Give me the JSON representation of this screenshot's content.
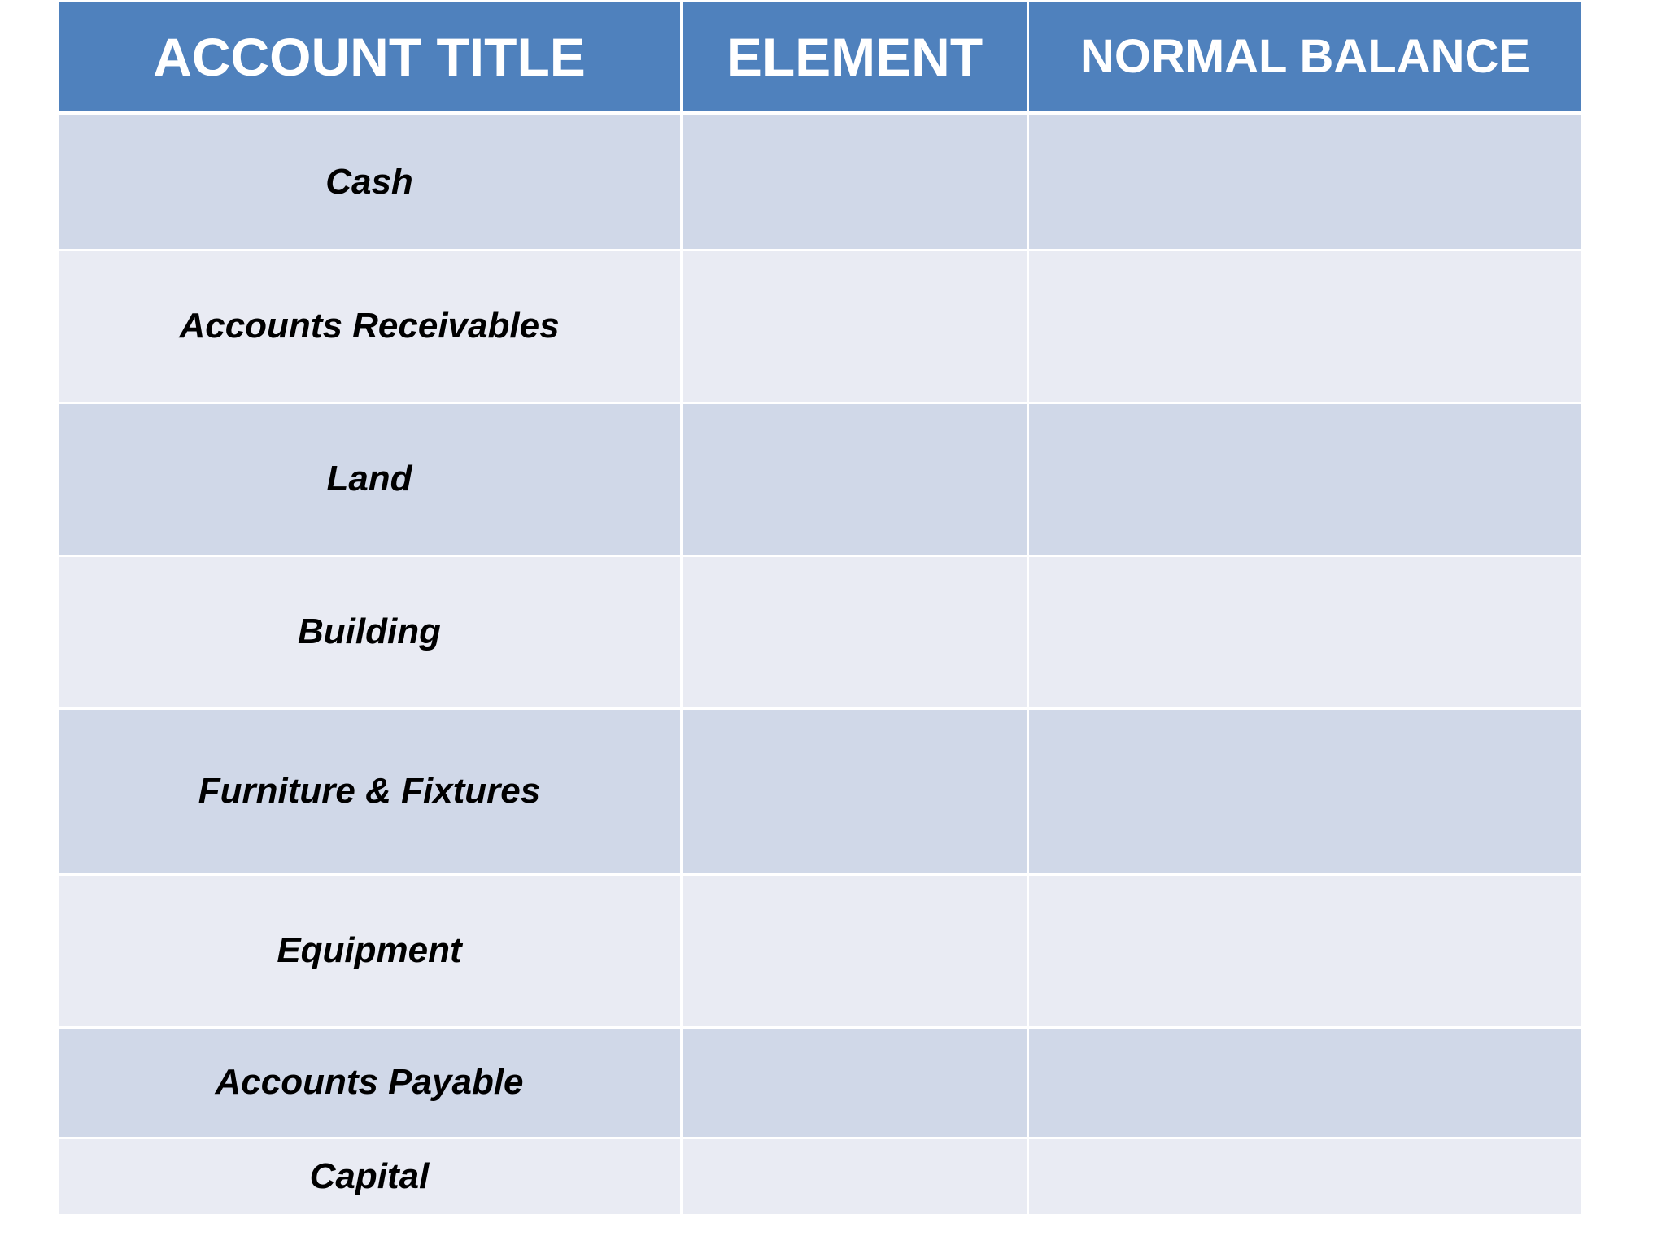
{
  "table": {
    "headers": [
      "ACCOUNT TITLE",
      "ELEMENT",
      "NORMAL BALANCE"
    ],
    "rows": [
      {
        "account": "Cash",
        "element": "",
        "normal_balance": ""
      },
      {
        "account": "Accounts Receivables",
        "element": "",
        "normal_balance": ""
      },
      {
        "account": "Land",
        "element": "",
        "normal_balance": ""
      },
      {
        "account": "Building",
        "element": "",
        "normal_balance": ""
      },
      {
        "account": "Furniture & Fixtures",
        "element": "",
        "normal_balance": ""
      },
      {
        "account": "Equipment",
        "element": "",
        "normal_balance": ""
      },
      {
        "account": "Accounts Payable",
        "element": "",
        "normal_balance": ""
      },
      {
        "account": "Capital",
        "element": "",
        "normal_balance": ""
      }
    ]
  },
  "colors": {
    "header": "#4f81bd",
    "band_dark": "#d0d8e8",
    "band_light": "#e9ebf3"
  }
}
